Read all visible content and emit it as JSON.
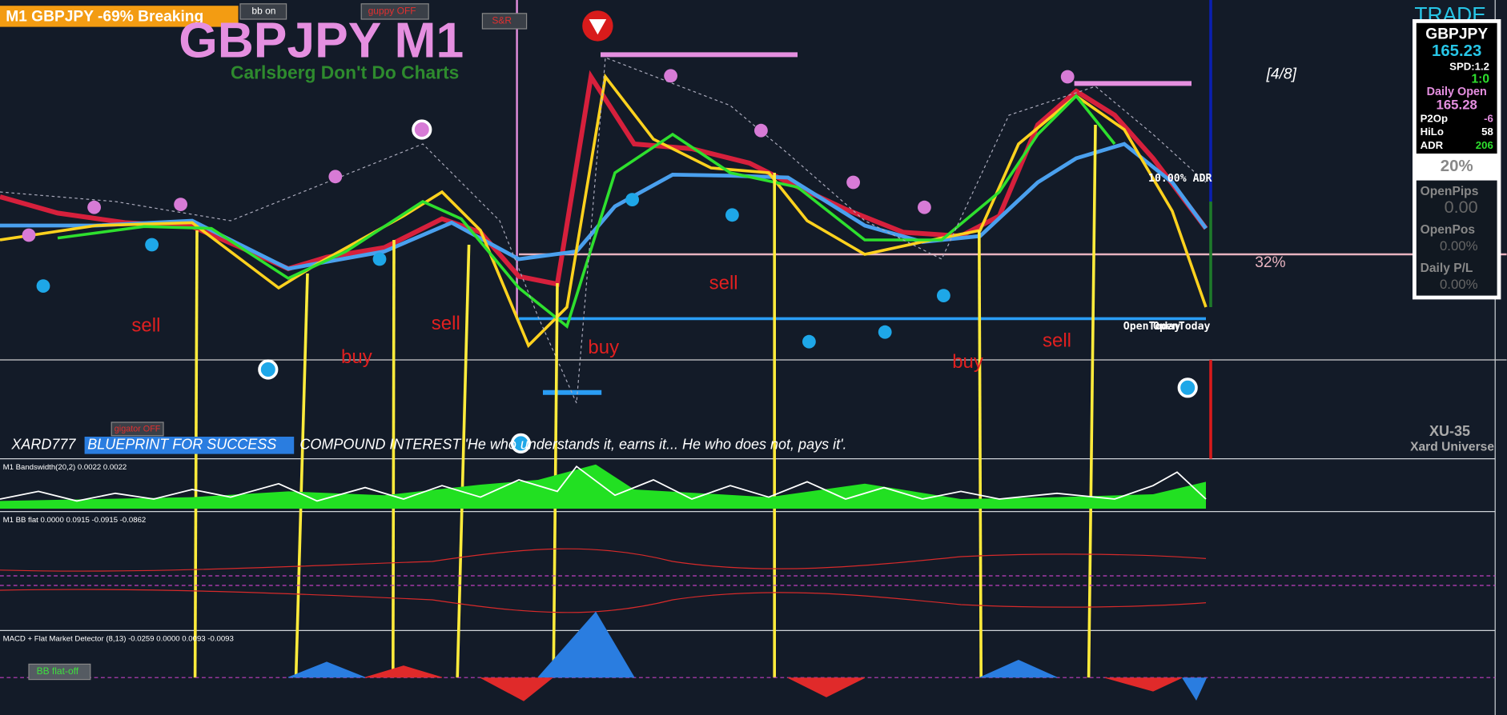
{
  "header": {
    "status": "M1 GBPJPY -69% Breaking",
    "bb_button": "bb on",
    "guppy_button": "guppy OFF",
    "sr_button": "S&R",
    "title": "GBPJPY M1",
    "subtitle": "Carlsberg Don't Do Charts",
    "trade": "TRADE"
  },
  "annotations": {
    "fraction": "[4/8]",
    "adr": "10.00% ADR",
    "percent": "32%",
    "open_today": "OpenToday",
    "signals": [
      "sell",
      "buy",
      "sell",
      "buy",
      "sell",
      "buy",
      "sell"
    ]
  },
  "footer": {
    "author": "XARD777",
    "blueprint": "BLUEPRINT FOR SUCCESS",
    "quote": "COMPOUND INTEREST 'He who understands it, earns it... He who does not, pays it'.",
    "version": "XU-35",
    "brand": "Xard Universe",
    "alligator": "gigator OFF"
  },
  "panels": [
    "M1 Bandswidth(20,2) 0.0022 0.0022",
    "M1 BB flat 0.0000 0.0915 -0.0915 -0.0862",
    "MACD + Flat Market Detector (8,13) -0.0259 0.0000 0.0093 -0.0093"
  ],
  "bb_flat_button": "BB flat-off",
  "info_box": {
    "symbol": "GBPJPY",
    "price": "165.23",
    "spread": "SPD:1.2",
    "ratio": "1:0",
    "daily_open_label": "Daily Open",
    "daily_open": "165.28",
    "rows": [
      [
        "P2Op",
        "-6"
      ],
      [
        "HiLo",
        "58"
      ],
      [
        "ADR",
        "206"
      ]
    ],
    "strength": "20%",
    "stats": [
      [
        "OpenPips",
        "0.00"
      ],
      [
        "OpenPos",
        "0.00%"
      ],
      [
        "Daily P/L",
        "0.00%"
      ]
    ]
  }
}
